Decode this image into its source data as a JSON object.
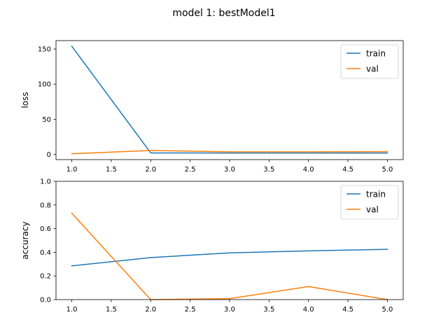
{
  "figure": {
    "title": "model 1: bestModel1"
  },
  "chart_data": [
    {
      "type": "line",
      "ylabel": "loss",
      "x": [
        1.0,
        2.0,
        3.0,
        4.0,
        5.0
      ],
      "xlim": [
        0.8,
        5.2
      ],
      "ylim": [
        -7.5,
        162
      ],
      "xticks": [
        "1.0",
        "1.5",
        "2.0",
        "2.5",
        "3.0",
        "3.5",
        "4.0",
        "4.5",
        "5.0"
      ],
      "yticks": [
        "0",
        "50",
        "100",
        "150"
      ],
      "legend_position": "top-right",
      "grid": false,
      "series": [
        {
          "name": "train",
          "color": "#1f77b4",
          "values": [
            154,
            2.0,
            1.8,
            1.8,
            1.8
          ]
        },
        {
          "name": "val",
          "color": "#ff7f0e",
          "values": [
            0.8,
            5.5,
            3.6,
            3.6,
            3.8
          ]
        }
      ]
    },
    {
      "type": "line",
      "ylabel": "accuracy",
      "x": [
        1.0,
        2.0,
        3.0,
        4.0,
        5.0
      ],
      "xlim": [
        0.8,
        5.2
      ],
      "ylim": [
        0.0,
        1.0
      ],
      "xticks": [
        "1.0",
        "1.5",
        "2.0",
        "2.5",
        "3.0",
        "3.5",
        "4.0",
        "4.5",
        "5.0"
      ],
      "yticks": [
        "0.0",
        "0.2",
        "0.4",
        "0.6",
        "0.8",
        "1.0"
      ],
      "legend_position": "top-right",
      "grid": false,
      "series": [
        {
          "name": "train",
          "color": "#1f77b4",
          "values": [
            0.285,
            0.355,
            0.395,
            0.412,
            0.425
          ]
        },
        {
          "name": "val",
          "color": "#ff7f0e",
          "values": [
            0.73,
            0.0,
            0.008,
            0.11,
            0.0
          ]
        }
      ]
    }
  ]
}
